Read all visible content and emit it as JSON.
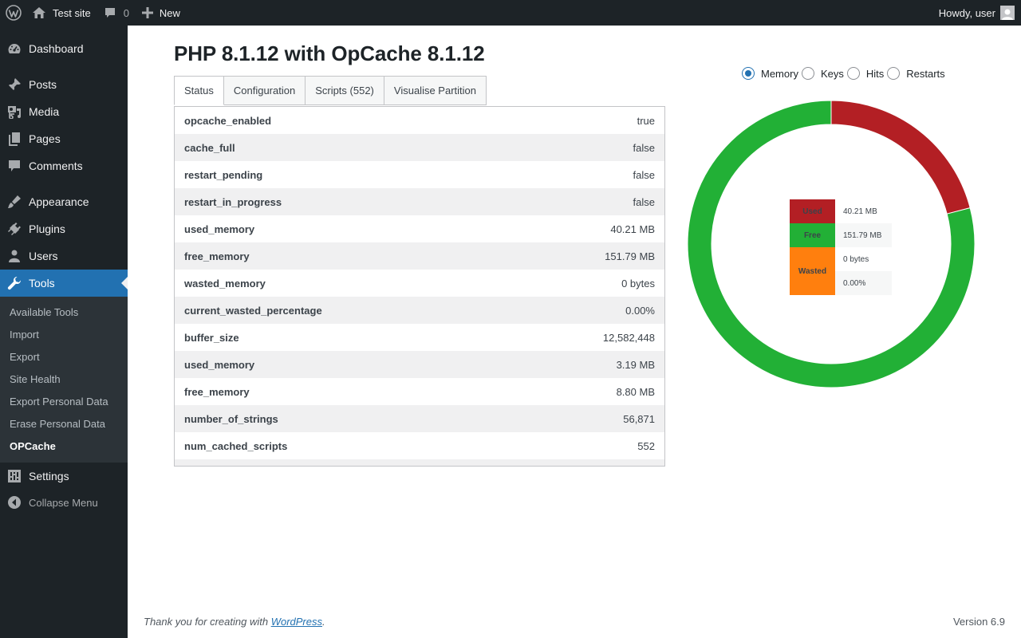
{
  "adminbar": {
    "site_name": "Test site",
    "comments_count": "0",
    "new_label": "New",
    "howdy": "Howdy, user"
  },
  "sidebar": {
    "items": [
      {
        "label": "Dashboard",
        "icon": "dashboard-icon"
      },
      {
        "label": "Posts",
        "icon": "pin-icon"
      },
      {
        "label": "Media",
        "icon": "media-icon"
      },
      {
        "label": "Pages",
        "icon": "pages-icon"
      },
      {
        "label": "Comments",
        "icon": "comment-icon"
      },
      {
        "label": "Appearance",
        "icon": "brush-icon"
      },
      {
        "label": "Plugins",
        "icon": "plugin-icon"
      },
      {
        "label": "Users",
        "icon": "user-icon"
      },
      {
        "label": "Tools",
        "icon": "wrench-icon"
      },
      {
        "label": "Settings",
        "icon": "settings-icon"
      }
    ],
    "submenu": [
      "Available Tools",
      "Import",
      "Export",
      "Site Health",
      "Export Personal Data",
      "Erase Personal Data",
      "OPCache"
    ],
    "collapse_label": "Collapse Menu"
  },
  "main": {
    "title": "PHP 8.1.12 with OpCache 8.1.12",
    "tabs": [
      "Status",
      "Configuration",
      "Scripts (552)",
      "Visualise Partition"
    ],
    "active_tab": "Status",
    "rows": [
      {
        "key": "opcache_enabled",
        "value": "true"
      },
      {
        "key": "cache_full",
        "value": "false"
      },
      {
        "key": "restart_pending",
        "value": "false"
      },
      {
        "key": "restart_in_progress",
        "value": "false"
      },
      {
        "key": "used_memory",
        "value": "40.21 MB"
      },
      {
        "key": "free_memory",
        "value": "151.79 MB"
      },
      {
        "key": "wasted_memory",
        "value": "0 bytes"
      },
      {
        "key": "current_wasted_percentage",
        "value": "0.00%"
      },
      {
        "key": "buffer_size",
        "value": "12,582,448"
      },
      {
        "key": "used_memory",
        "value": "3.19 MB"
      },
      {
        "key": "free_memory",
        "value": "8.80 MB"
      },
      {
        "key": "number_of_strings",
        "value": "56,871"
      },
      {
        "key": "num_cached_scripts",
        "value": "552"
      }
    ],
    "radios": [
      "Memory",
      "Keys",
      "Hits",
      "Restarts"
    ],
    "selected_radio": "Memory"
  },
  "chart_data": {
    "type": "pie",
    "variant": "donut",
    "series": [
      {
        "name": "Used",
        "value": 40.21,
        "color": "#b31f24"
      },
      {
        "name": "Free",
        "value": 151.79,
        "color": "#22b036"
      },
      {
        "name": "Wasted",
        "value": 0,
        "color": "#ff7f0e"
      }
    ],
    "unit": "MB",
    "legend": {
      "used_label": "Used",
      "used_value": "40.21 MB",
      "free_label": "Free",
      "free_value": "151.79 MB",
      "wasted_label": "Wasted",
      "wasted_value": "0 bytes",
      "wasted_percent": "0.00%"
    }
  },
  "footer": {
    "thanks_prefix": "Thank you for creating with ",
    "thanks_link": "WordPress",
    "thanks_suffix": ".",
    "version": "Version 6.9"
  }
}
